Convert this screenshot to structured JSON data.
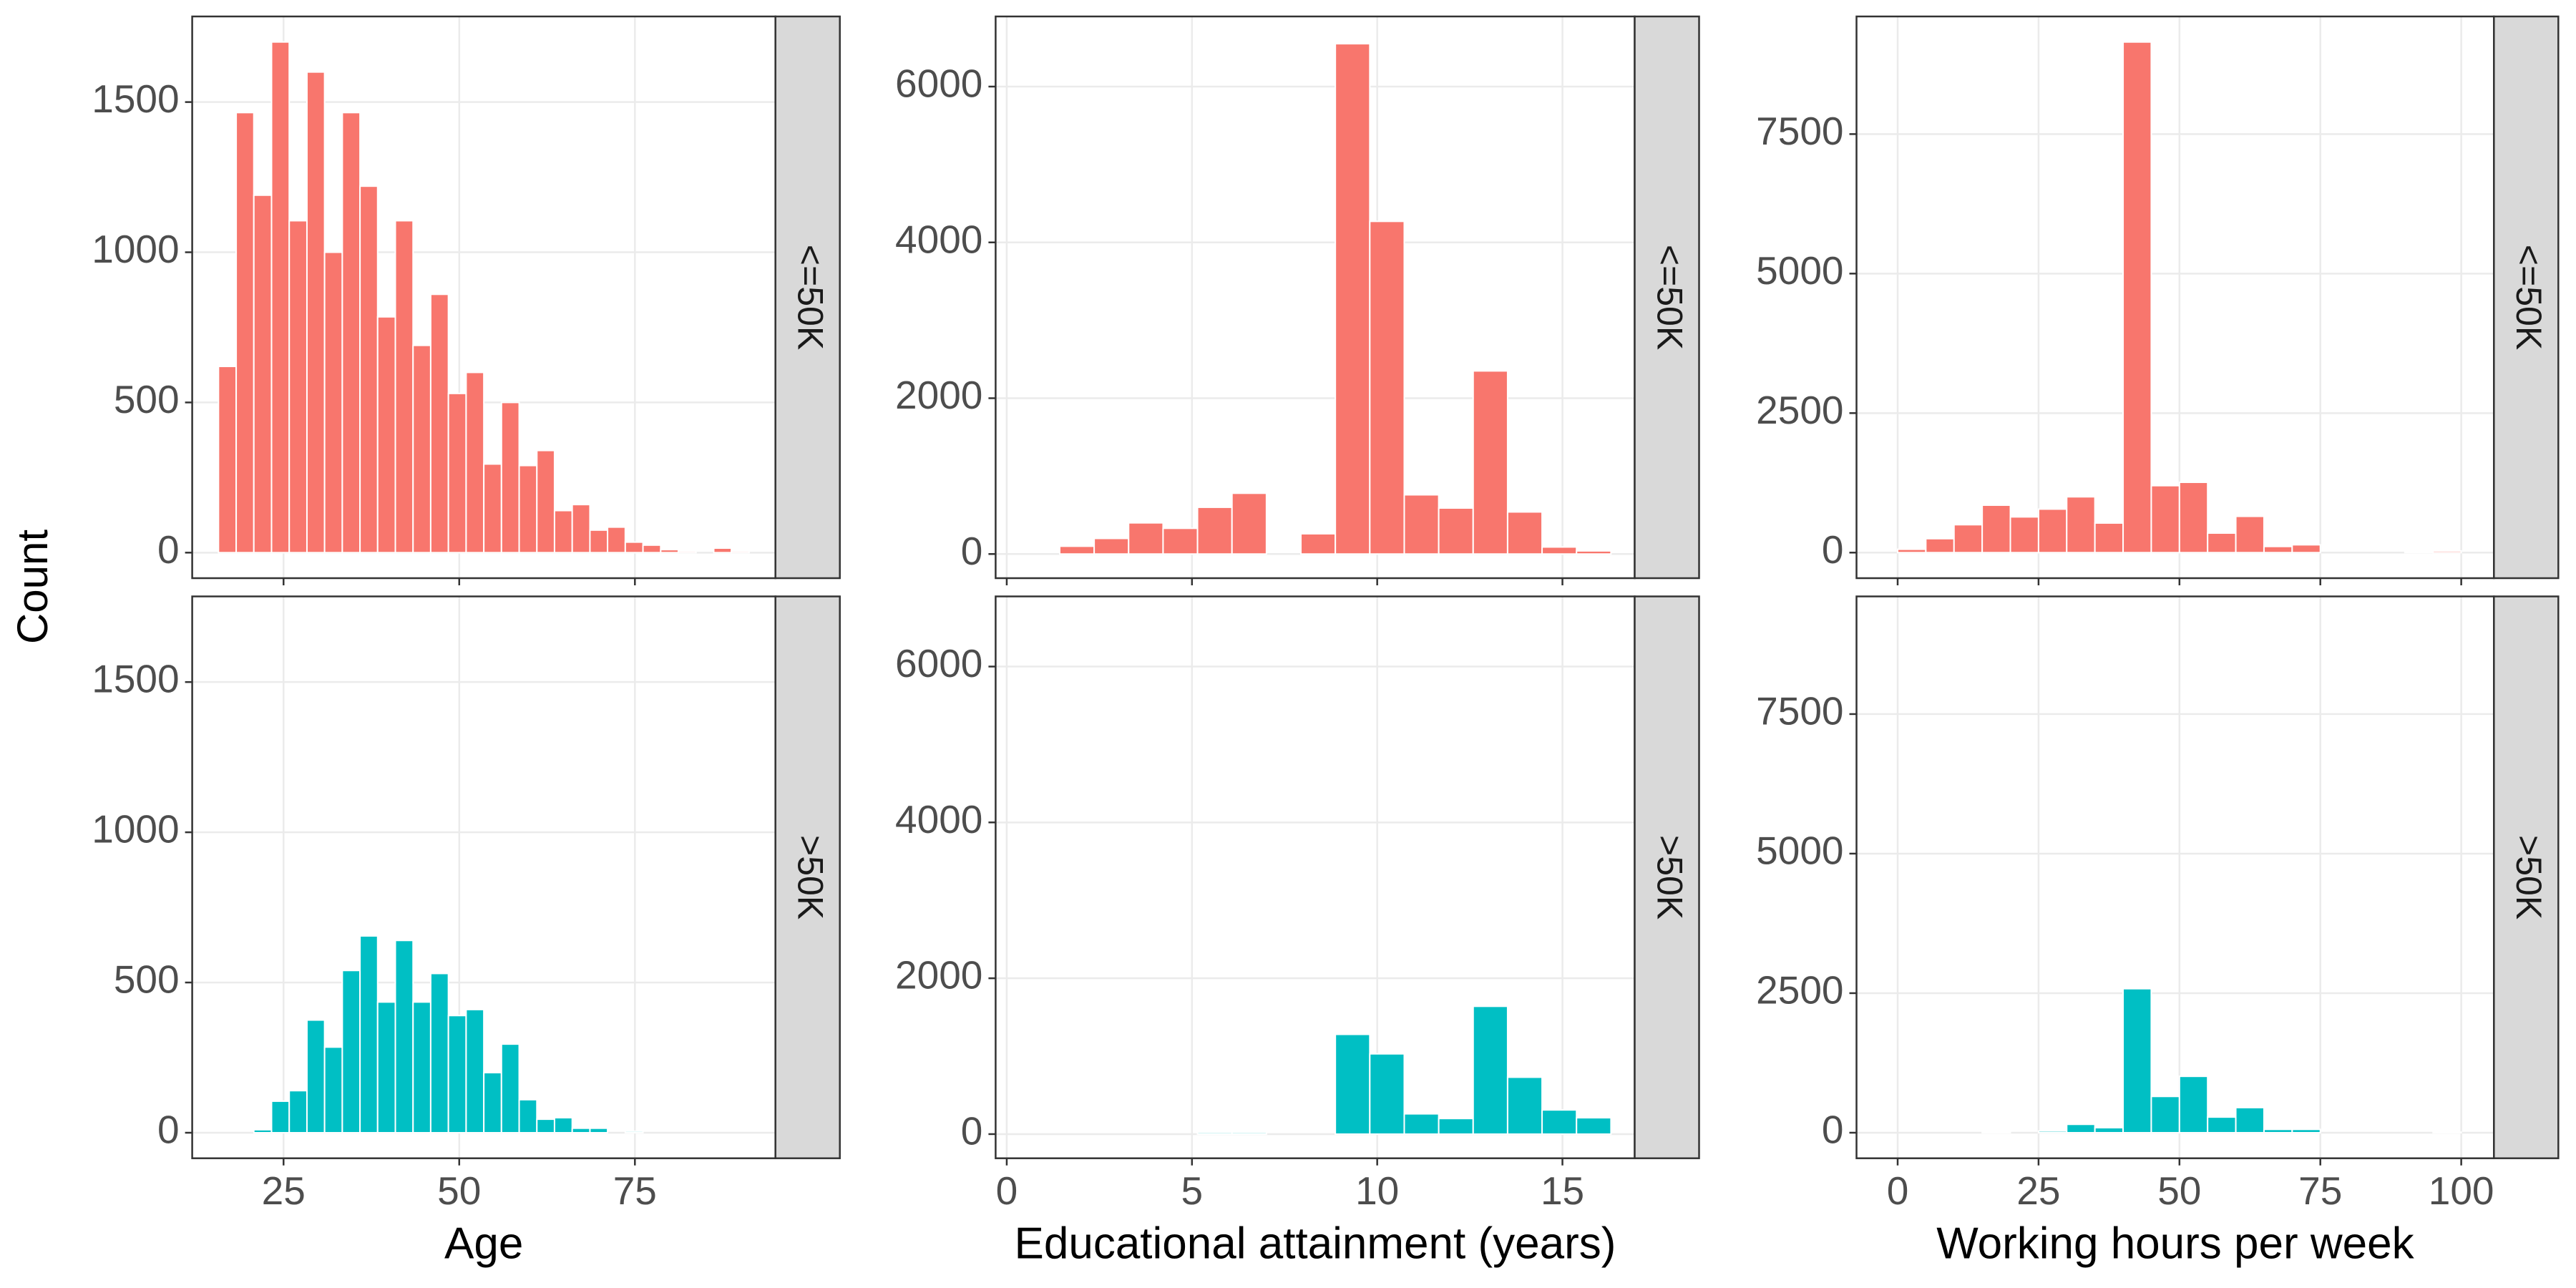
{
  "chart_data": [
    {
      "type": "histogram",
      "ylabel": "Count",
      "xlabel": "Age",
      "bins": [
        15.74,
        18.26,
        20.77,
        23.29,
        25.81,
        28.33,
        30.84,
        33.36,
        35.88,
        38.39,
        40.91,
        43.43,
        45.94,
        48.46,
        50.98,
        53.5,
        56.01,
        58.53,
        61.05,
        63.56,
        66.08,
        68.6,
        71.11,
        73.63,
        76.15,
        78.67,
        81.18,
        83.7,
        86.22,
        88.73,
        91.25
      ],
      "series": [
        {
          "name": "<=50K",
          "color": "#F8766D",
          "values": [
            620,
            1465,
            1190,
            1700,
            1105,
            1600,
            1000,
            1465,
            1220,
            785,
            1105,
            690,
            860,
            530,
            600,
            295,
            500,
            290,
            340,
            140,
            160,
            75,
            85,
            35,
            25,
            10,
            5,
            0,
            15,
            5
          ]
        },
        {
          "name": ">50K",
          "color": "#00BFC4",
          "values": [
            0,
            0,
            10,
            105,
            140,
            375,
            285,
            540,
            655,
            435,
            640,
            435,
            530,
            390,
            410,
            200,
            295,
            110,
            45,
            50,
            15,
            15,
            0,
            5,
            0,
            0,
            0,
            0,
            0,
            0
          ]
        }
      ],
      "xlim": [
        12,
        95
      ],
      "xticks": [
        25,
        50,
        75
      ],
      "ylim": [
        -85,
        1785
      ],
      "yticks": [
        0,
        500,
        1000,
        1500
      ],
      "grid": true
    },
    {
      "type": "histogram",
      "xlabel": "Educational attainment (years)",
      "bins": [
        1.43,
        2.36,
        3.29,
        4.22,
        5.15,
        6.08,
        7.01,
        7.94,
        8.87,
        9.8,
        10.73,
        11.66,
        12.59,
        13.52,
        14.45,
        15.38,
        16.31
      ],
      "series": [
        {
          "name": "<=50K",
          "color": "#F8766D",
          "values": [
            100,
            200,
            400,
            330,
            600,
            780,
            0,
            260,
            6550,
            4270,
            760,
            590,
            2350,
            540,
            90,
            40
          ]
        },
        {
          "name": ">50K",
          "color": "#00BFC4",
          "values": [
            0,
            0,
            0,
            0,
            20,
            20,
            0,
            0,
            1280,
            1030,
            260,
            200,
            1640,
            730,
            310,
            210
          ]
        }
      ],
      "xlim": [
        -0.3,
        16.95
      ],
      "xticks": [
        0,
        5,
        10,
        15
      ],
      "ylim": [
        -310,
        6900
      ],
      "yticks": [
        0,
        2000,
        4000,
        6000
      ],
      "grid": true
    },
    {
      "type": "histogram",
      "xlabel": "Working hours per week",
      "bins": [
        0,
        5,
        10,
        15,
        20,
        25,
        30,
        35,
        40,
        45,
        50,
        55,
        60,
        65,
        70,
        75,
        80,
        85,
        90,
        95,
        100
      ],
      "series": [
        {
          "name": "<=50K",
          "color": "#F8766D",
          "values": [
            60,
            250,
            500,
            850,
            640,
            780,
            1000,
            530,
            9150,
            1200,
            1260,
            350,
            650,
            110,
            140,
            0,
            0,
            0,
            10,
            30
          ]
        },
        {
          "name": ">50K",
          "color": "#00BFC4",
          "values": [
            0,
            0,
            0,
            10,
            0,
            30,
            150,
            90,
            2580,
            650,
            1010,
            280,
            450,
            60,
            60,
            0,
            0,
            0,
            0,
            10
          ]
        }
      ],
      "xlim": [
        -7.3,
        105.8
      ],
      "xticks": [
        0,
        25,
        50,
        75,
        100
      ],
      "ylim": [
        -458,
        9608
      ],
      "yticks": [
        0,
        2500,
        5000,
        7500
      ],
      "grid": true
    }
  ]
}
